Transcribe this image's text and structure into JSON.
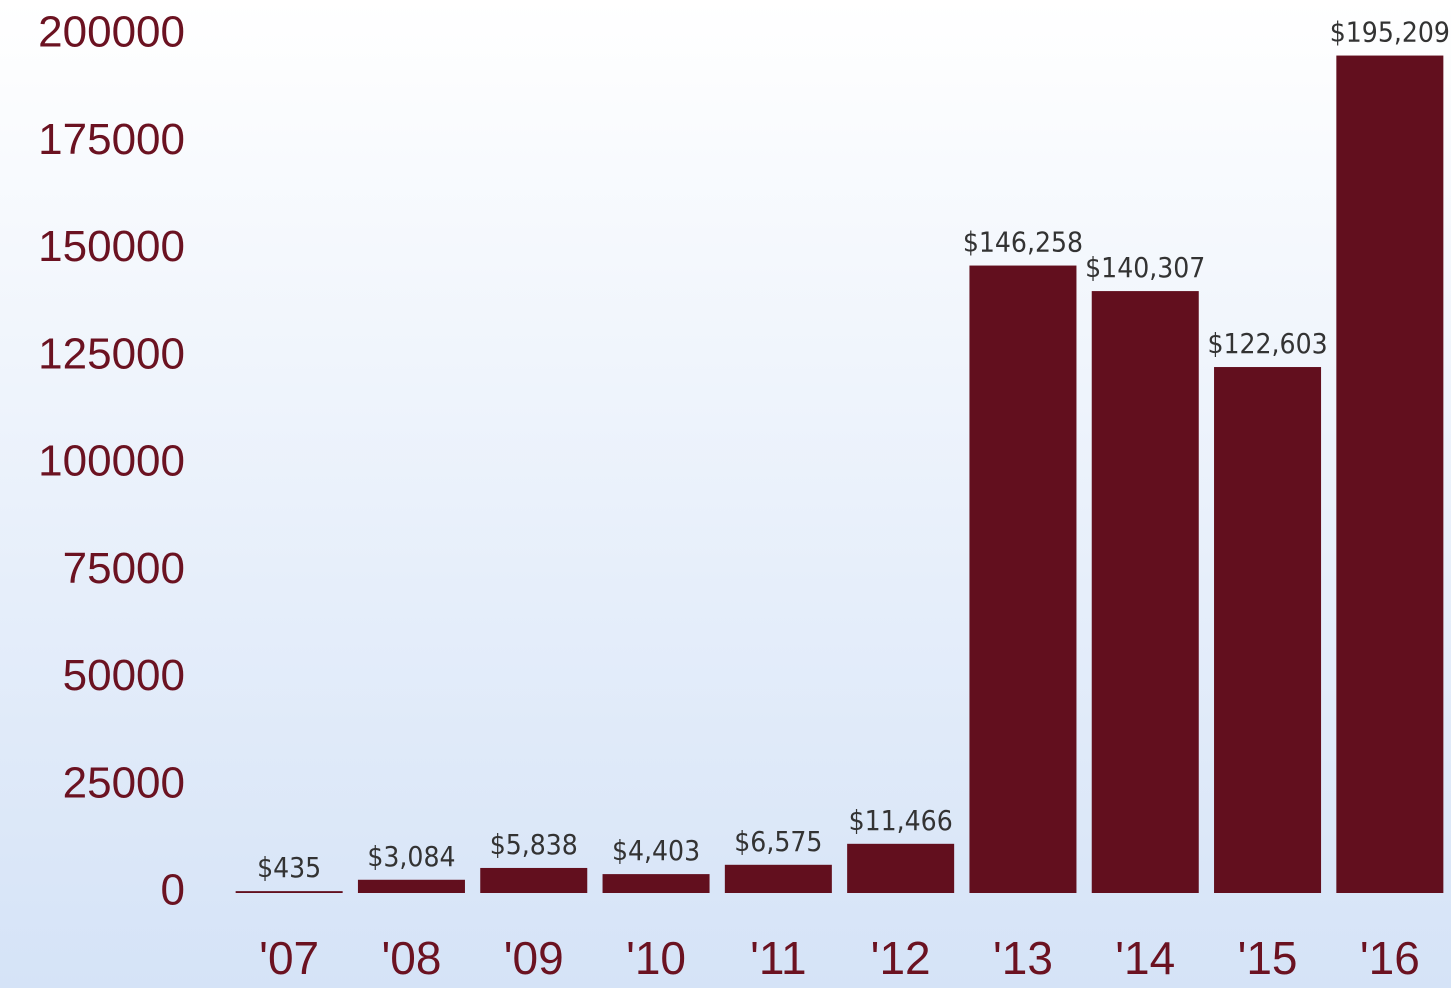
{
  "chart_data": {
    "type": "bar",
    "categories": [
      "'07",
      "'08",
      "'09",
      "'10",
      "'11",
      "'12",
      "'13",
      "'14",
      "'15",
      "'16"
    ],
    "values": [
      435,
      3084,
      5838,
      4403,
      6575,
      11466,
      146258,
      140307,
      122603,
      195209
    ],
    "value_labels": [
      "$435",
      "$3,084",
      "$5,838",
      "$4,403",
      "$6,575",
      "$11,466",
      "$146,258",
      "$140,307",
      "$122,603",
      "$195,209"
    ],
    "color": "#620f1e",
    "ylim": [
      0,
      200000
    ],
    "yticks": [
      0,
      25000,
      50000,
      75000,
      100000,
      125000,
      150000,
      175000,
      200000
    ],
    "grid": false
  }
}
